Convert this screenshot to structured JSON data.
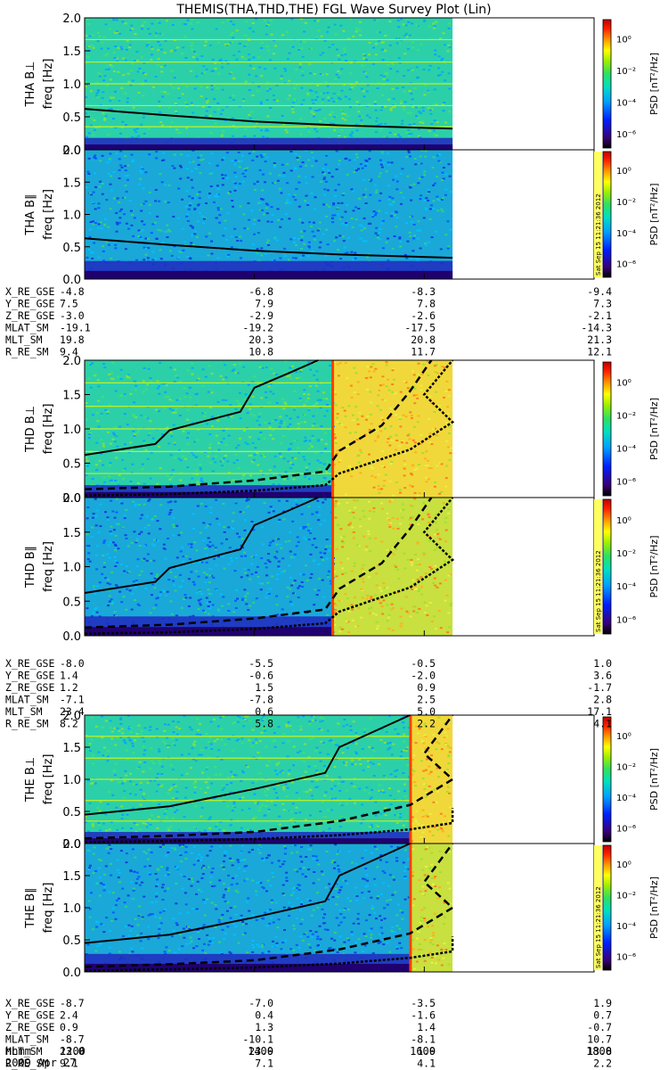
{
  "title": "THEMIS(THA,THD,THE) FGL Wave Survey Plot (Lin)",
  "colorbar": {
    "label": "PSD [nT²/Hz]",
    "ticks": [
      "10⁰",
      "10⁻²",
      "10⁻⁴",
      "10⁻⁶"
    ],
    "side_stamp": "Sat Sep 15 11:21:36 2012",
    "colors": [
      "#000000",
      "#3a0078",
      "#0020ff",
      "#00a0ff",
      "#00e0c0",
      "#30e060",
      "#a0f000",
      "#ffff00",
      "#ff9000",
      "#ff2000",
      "#c00000"
    ]
  },
  "time_axis": {
    "label_row": "hhmm",
    "date_label": "2009 Apr 27",
    "ticks": [
      "1200",
      "1400",
      "1600",
      "1800"
    ]
  },
  "chart_data": [
    {
      "type": "heatmap",
      "probe": "THA",
      "component": "B⊥",
      "ylabel": "THA B⊥",
      "ylabel2": "freq [Hz]",
      "yticks": [
        "0.0",
        "0.5",
        "1.0",
        "1.5",
        "2.0"
      ],
      "ylim": [
        0,
        2.0
      ],
      "data_end_hhmm": 1620,
      "intensity": "cyan-green background, dark blue below 0.2 Hz",
      "curves": [
        {
          "style": "solid",
          "t": [
            1200,
            1300,
            1400,
            1500,
            1620
          ],
          "f": [
            0.62,
            0.52,
            0.43,
            0.37,
            0.32
          ]
        }
      ]
    },
    {
      "type": "heatmap",
      "probe": "THA",
      "component": "B∥",
      "ylabel": "THA B∥",
      "ylabel2": "freq [Hz]",
      "yticks": [
        "0.0",
        "0.5",
        "1.0",
        "1.5",
        "2.0"
      ],
      "ylim": [
        0,
        2.0
      ],
      "data_end_hhmm": 1620,
      "intensity": "blue-cyan background, dark blue below 0.3 Hz",
      "curves": [
        {
          "style": "solid",
          "t": [
            1200,
            1300,
            1400,
            1500,
            1620
          ],
          "f": [
            0.63,
            0.53,
            0.44,
            0.38,
            0.33
          ]
        }
      ]
    },
    {
      "type": "heatmap",
      "probe": "THD",
      "component": "B⊥",
      "ylabel": "THD B⊥",
      "ylabel2": "freq [Hz]",
      "yticks": [
        "0.0",
        "0.5",
        "1.0",
        "1.5",
        "2.0"
      ],
      "ylim": [
        0,
        2.0
      ],
      "data_end_hhmm": 1620,
      "intensity": "cyan-green until ~14:55, then yellow/orange",
      "curves": [
        {
          "style": "solid",
          "t": [
            1200,
            1250,
            1300,
            1350,
            1400,
            1425,
            1445
          ],
          "f": [
            0.62,
            0.78,
            0.98,
            1.25,
            1.6,
            1.82,
            2.0
          ]
        },
        {
          "style": "dashed",
          "t": [
            1200,
            1300,
            1400,
            1450,
            1500,
            1530,
            1550,
            1565
          ],
          "f": [
            0.12,
            0.16,
            0.25,
            0.38,
            0.68,
            1.05,
            1.55,
            2.0
          ]
        },
        {
          "style": "dotdash",
          "t": [
            1200,
            1300,
            1400,
            1450,
            1500,
            1550,
            1580,
            1600,
            1620
          ],
          "f": [
            0.03,
            0.05,
            0.1,
            0.18,
            0.35,
            0.7,
            1.1,
            1.5,
            2.0
          ]
        }
      ]
    },
    {
      "type": "heatmap",
      "probe": "THD",
      "component": "B∥",
      "ylabel": "THD B∥",
      "ylabel2": "freq [Hz]",
      "yticks": [
        "0.0",
        "0.5",
        "1.0",
        "1.5",
        "2.0"
      ],
      "ylim": [
        0,
        2.0
      ],
      "data_end_hhmm": 1620,
      "intensity": "blue-cyan until ~14:55, then yellow/green",
      "curves": [
        {
          "style": "solid",
          "t": [
            1200,
            1250,
            1300,
            1350,
            1400,
            1425,
            1445
          ],
          "f": [
            0.62,
            0.78,
            0.98,
            1.25,
            1.6,
            1.82,
            2.0
          ]
        },
        {
          "style": "dashed",
          "t": [
            1200,
            1300,
            1400,
            1450,
            1500,
            1530,
            1550,
            1565
          ],
          "f": [
            0.12,
            0.16,
            0.25,
            0.38,
            0.68,
            1.05,
            1.55,
            2.0
          ]
        },
        {
          "style": "dotdash",
          "t": [
            1200,
            1300,
            1400,
            1450,
            1500,
            1550,
            1580,
            1600,
            1620
          ],
          "f": [
            0.03,
            0.05,
            0.1,
            0.18,
            0.35,
            0.7,
            1.1,
            1.5,
            2.0
          ]
        }
      ]
    },
    {
      "type": "heatmap",
      "probe": "THE",
      "component": "B⊥",
      "ylabel": "THE B⊥",
      "ylabel2": "freq [Hz]",
      "yticks": [
        "0.0",
        "0.5",
        "1.0",
        "1.5",
        "2.0"
      ],
      "ylim": [
        0,
        2.0
      ],
      "data_end_hhmm": 1620,
      "intensity": "cyan-green until ~15:50, then yellow/orange",
      "curves": [
        {
          "style": "solid",
          "t": [
            1200,
            1300,
            1400,
            1450,
            1500,
            1530,
            1550
          ],
          "f": [
            0.45,
            0.58,
            0.85,
            1.1,
            1.5,
            1.8,
            2.0
          ]
        },
        {
          "style": "dashed",
          "t": [
            1200,
            1300,
            1400,
            1500,
            1550,
            1580,
            1600,
            1620
          ],
          "f": [
            0.08,
            0.12,
            0.18,
            0.35,
            0.6,
            1.0,
            1.4,
            2.0
          ]
        },
        {
          "style": "dotdash",
          "t": [
            1200,
            1300,
            1400,
            1500,
            1550,
            1580,
            1620
          ],
          "f": [
            0.02,
            0.04,
            0.07,
            0.13,
            0.22,
            0.32,
            0.55
          ]
        }
      ]
    },
    {
      "type": "heatmap",
      "probe": "THE",
      "component": "B∥",
      "ylabel": "THE B∥",
      "ylabel2": "freq [Hz]",
      "yticks": [
        "0.0",
        "0.5",
        "1.0",
        "1.5",
        "2.0"
      ],
      "ylim": [
        0,
        2.0
      ],
      "data_end_hhmm": 1620,
      "intensity": "blue-cyan until ~15:50, then yellow/green",
      "curves": [
        {
          "style": "solid",
          "t": [
            1200,
            1300,
            1400,
            1450,
            1500,
            1530,
            1550
          ],
          "f": [
            0.45,
            0.58,
            0.85,
            1.1,
            1.5,
            1.8,
            2.0
          ]
        },
        {
          "style": "dashed",
          "t": [
            1200,
            1300,
            1400,
            1500,
            1550,
            1580,
            1600,
            1620
          ],
          "f": [
            0.08,
            0.12,
            0.18,
            0.35,
            0.6,
            1.0,
            1.4,
            2.0
          ]
        },
        {
          "style": "dotdash",
          "t": [
            1200,
            1300,
            1400,
            1500,
            1550,
            1580,
            1620
          ],
          "f": [
            0.02,
            0.04,
            0.07,
            0.13,
            0.22,
            0.32,
            0.55
          ]
        }
      ]
    }
  ],
  "ephemeris": [
    {
      "probe": "THA",
      "rows": [
        {
          "label": "X_RE_GSE",
          "values": [
            "-4.8",
            "-6.8",
            "-8.3",
            "-9.4"
          ]
        },
        {
          "label": "Y_RE_GSE",
          "values": [
            "7.5",
            "7.9",
            "7.8",
            "7.3"
          ]
        },
        {
          "label": "Z_RE_GSE",
          "values": [
            "-3.0",
            "-2.9",
            "-2.6",
            "-2.1"
          ]
        },
        {
          "label": "MLAT_SM",
          "values": [
            "-19.1",
            "-19.2",
            "-17.5",
            "-14.3"
          ]
        },
        {
          "label": "MLT_SM",
          "values": [
            "19.8",
            "20.3",
            "20.8",
            "21.3"
          ]
        },
        {
          "label": "R_RE_SM",
          "values": [
            "9.4",
            "10.8",
            "11.7",
            "12.1"
          ]
        }
      ]
    },
    {
      "probe": "THD",
      "rows": [
        {
          "label": "X_RE_GSE",
          "values": [
            "-8.0",
            "-5.5",
            "-0.5",
            "1.0"
          ]
        },
        {
          "label": "Y_RE_GSE",
          "values": [
            "1.4",
            "-0.6",
            "-2.0",
            "3.6"
          ]
        },
        {
          "label": "Z_RE_GSE",
          "values": [
            "1.2",
            "1.5",
            "0.9",
            "-1.7"
          ]
        },
        {
          "label": "MLAT_SM",
          "values": [
            "-7.1",
            "-7.8",
            "2.5",
            "2.8"
          ]
        },
        {
          "label": "MLT_SM",
          "values": [
            "23.4",
            "0.6",
            "5.0",
            "17.1"
          ]
        },
        {
          "label": "R_RE_SM",
          "values": [
            "8.2",
            "5.8",
            "2.2",
            "4.1"
          ]
        }
      ]
    },
    {
      "probe": "THE",
      "rows": [
        {
          "label": "X_RE_GSE",
          "values": [
            "-8.7",
            "-7.0",
            "-3.5",
            "1.9"
          ]
        },
        {
          "label": "Y_RE_GSE",
          "values": [
            "2.4",
            "0.4",
            "-1.6",
            "0.7"
          ]
        },
        {
          "label": "Z_RE_GSE",
          "values": [
            "0.9",
            "1.3",
            "1.4",
            "-0.7"
          ]
        },
        {
          "label": "MLAT_SM",
          "values": [
            "-8.7",
            "-10.1",
            "-8.1",
            "10.7"
          ]
        },
        {
          "label": "MLT_SM",
          "values": [
            "23.0",
            "23.9",
            "1.9",
            "13.8"
          ]
        },
        {
          "label": "R_RE_SM",
          "values": [
            "9.1",
            "7.1",
            "4.1",
            "2.2"
          ]
        }
      ]
    }
  ]
}
